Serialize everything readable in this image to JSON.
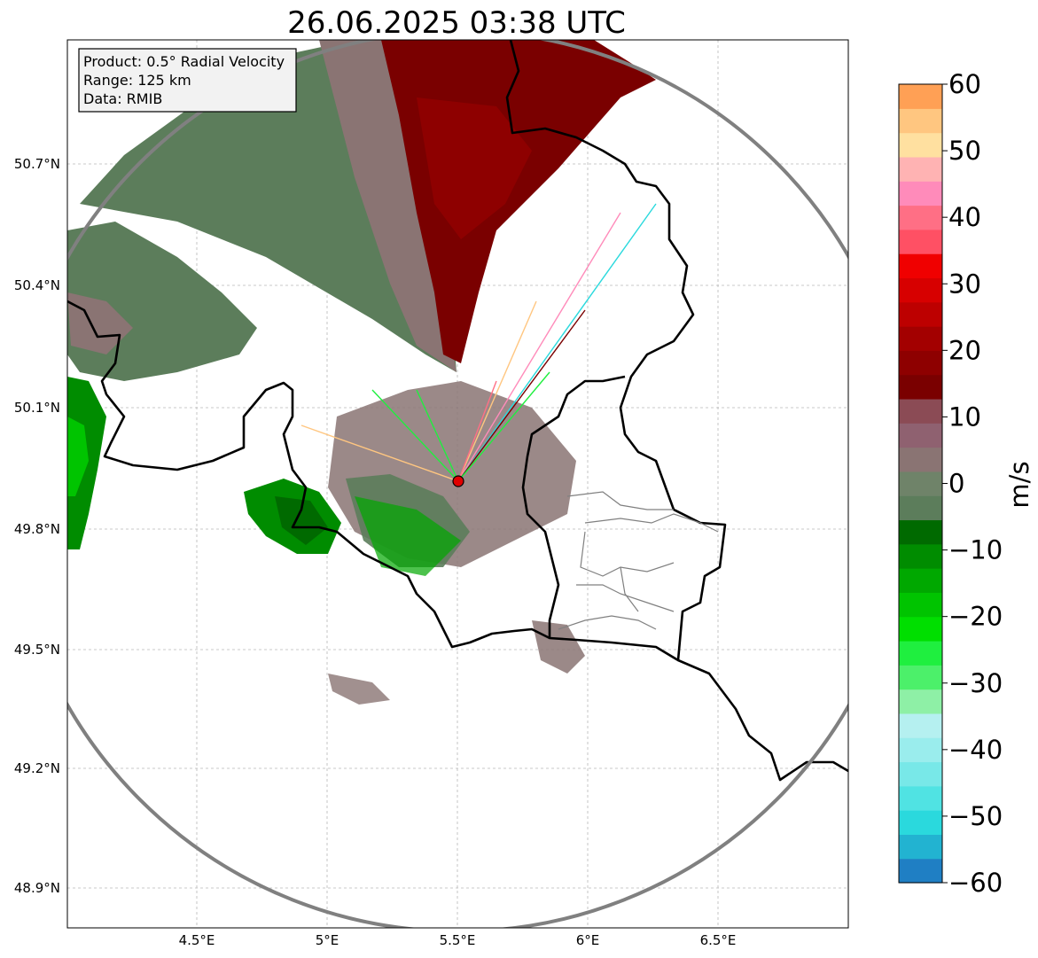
{
  "title": "26.06.2025 03:38 UTC",
  "info": {
    "product": "Product: 0.5° Radial Velocity",
    "range": "Range: 125 km",
    "source": "Data: RMIB"
  },
  "axes": {
    "lon_ticks": [
      "4.5°E",
      "5°E",
      "5.5°E",
      "6°E",
      "6.5°E"
    ],
    "lat_ticks": [
      "50.7°N",
      "50.4°N",
      "50.1°N",
      "49.8°N",
      "49.5°N",
      "49.2°N",
      "48.9°N"
    ]
  },
  "colorbar": {
    "label": "m/s",
    "ticks": [
      "60",
      "50",
      "40",
      "30",
      "20",
      "10",
      "0",
      "−10",
      "−20",
      "−30",
      "−40",
      "−50",
      "−60"
    ],
    "colors": [
      "#1f7fc4",
      "#22b3d1",
      "#2ad9dd",
      "#50e3e3",
      "#78e8e8",
      "#9aeded",
      "#b5f0f0",
      "#8ef0a6",
      "#4cf06a",
      "#1fef3f",
      "#00df00",
      "#00c400",
      "#00a800",
      "#008c00",
      "#006a00",
      "#5c7d5b",
      "#6f8369",
      "#8a7473",
      "#8f6170",
      "#8b4b55",
      "#7a0000",
      "#8e0000",
      "#a30000",
      "#bd0000",
      "#d70000",
      "#f00000",
      "#ff5064",
      "#ff6f85",
      "#ff8bba",
      "#ffb3b3",
      "#ffe0a0",
      "#ffc680",
      "#ffa055"
    ]
  },
  "map_colors": {
    "inbound_light": "#5c7d5b",
    "outbound_light": "#8a7473",
    "outbound_strong": "#7a0000",
    "inbound_strong": "#008c00",
    "radar_site": "#e00000",
    "range_ring": "#808080"
  }
}
